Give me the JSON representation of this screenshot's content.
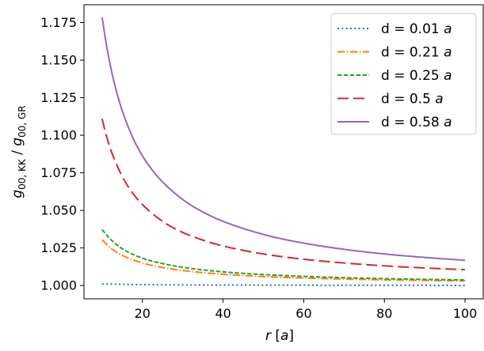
{
  "chart_data": {
    "type": "line",
    "xlabel": {
      "var": "r",
      "unit": "a"
    },
    "ylabel": {
      "num": "g",
      "num_sub": "00, KK",
      "sep": " / ",
      "den": "g",
      "den_sub": "00, GR"
    },
    "xlim": [
      5.5,
      104.5
    ],
    "ylim": [
      0.99115,
      1.18685
    ],
    "xticks": [
      20,
      40,
      60,
      80,
      100
    ],
    "yticks": [
      1.0,
      1.025,
      1.05,
      1.075,
      1.1,
      1.125,
      1.15,
      1.175
    ],
    "xtick_labels": [
      "20",
      "40",
      "60",
      "80",
      "100"
    ],
    "ytick_labels": [
      "1.000",
      "1.025",
      "1.050",
      "1.075",
      "1.100",
      "1.125",
      "1.150",
      "1.175"
    ],
    "legend_position": "top-right",
    "series": [
      {
        "label_prefix": "d = 0.01 ",
        "label_unit": "a",
        "color": "#1f77b4",
        "style": "dotted",
        "x": [
          10,
          15,
          20,
          30,
          40,
          50,
          60,
          70,
          80,
          90,
          100
        ],
        "y": [
          1.0011,
          1.0008,
          1.0006,
          1.0004,
          1.0003,
          1.00025,
          1.0002,
          1.00017,
          1.00015,
          1.00013,
          1.00012
        ]
      },
      {
        "label_prefix": "d = 0.21 ",
        "label_unit": "a",
        "color": "#ff7f0e",
        "style": "dashdot",
        "x": [
          10,
          12,
          15,
          20,
          25,
          30,
          40,
          50,
          60,
          70,
          80,
          90,
          100
        ],
        "y": [
          1.0305,
          1.0252,
          1.0201,
          1.015,
          1.012,
          1.01,
          1.0075,
          1.006,
          1.005,
          1.0043,
          1.0038,
          1.0034,
          1.0031
        ]
      },
      {
        "label_prefix": "d = 0.25 ",
        "label_unit": "a",
        "color": "#2ca02c",
        "style": "dashed",
        "x": [
          10,
          12,
          15,
          20,
          25,
          30,
          40,
          50,
          60,
          70,
          80,
          90,
          100
        ],
        "y": [
          1.0372,
          1.031,
          1.0245,
          1.0182,
          1.0146,
          1.0121,
          1.0091,
          1.0073,
          1.0061,
          1.0052,
          1.0046,
          1.0041,
          1.0037
        ]
      },
      {
        "label_prefix": "d = 0.5 ",
        "label_unit": "a",
        "color": "#d62728",
        "style": "longdash",
        "x": [
          10,
          11,
          12,
          13,
          15,
          17.5,
          20,
          25,
          30,
          35,
          40,
          50,
          60,
          70,
          80,
          90,
          100
        ],
        "y": [
          1.111,
          1.1001,
          1.0915,
          1.0843,
          1.0725,
          1.0618,
          1.0539,
          1.0427,
          1.0353,
          1.0302,
          1.0263,
          1.021,
          1.0175,
          1.015,
          1.0131,
          1.0117,
          1.0105
        ]
      },
      {
        "label_prefix": "d = 0.58 ",
        "label_unit": "a",
        "color": "#9467bd",
        "style": "solid",
        "x": [
          10,
          11,
          12,
          13,
          14,
          15,
          17.5,
          20,
          22.5,
          25,
          30,
          35,
          40,
          50,
          60,
          70,
          80,
          90,
          100
        ],
        "y": [
          1.1785,
          1.1612,
          1.147,
          1.135,
          1.125,
          1.1163,
          1.099,
          1.0863,
          1.0766,
          1.0689,
          1.0572,
          1.0489,
          1.0427,
          1.034,
          1.0282,
          1.0241,
          1.021,
          1.0187,
          1.0168
        ]
      }
    ]
  }
}
